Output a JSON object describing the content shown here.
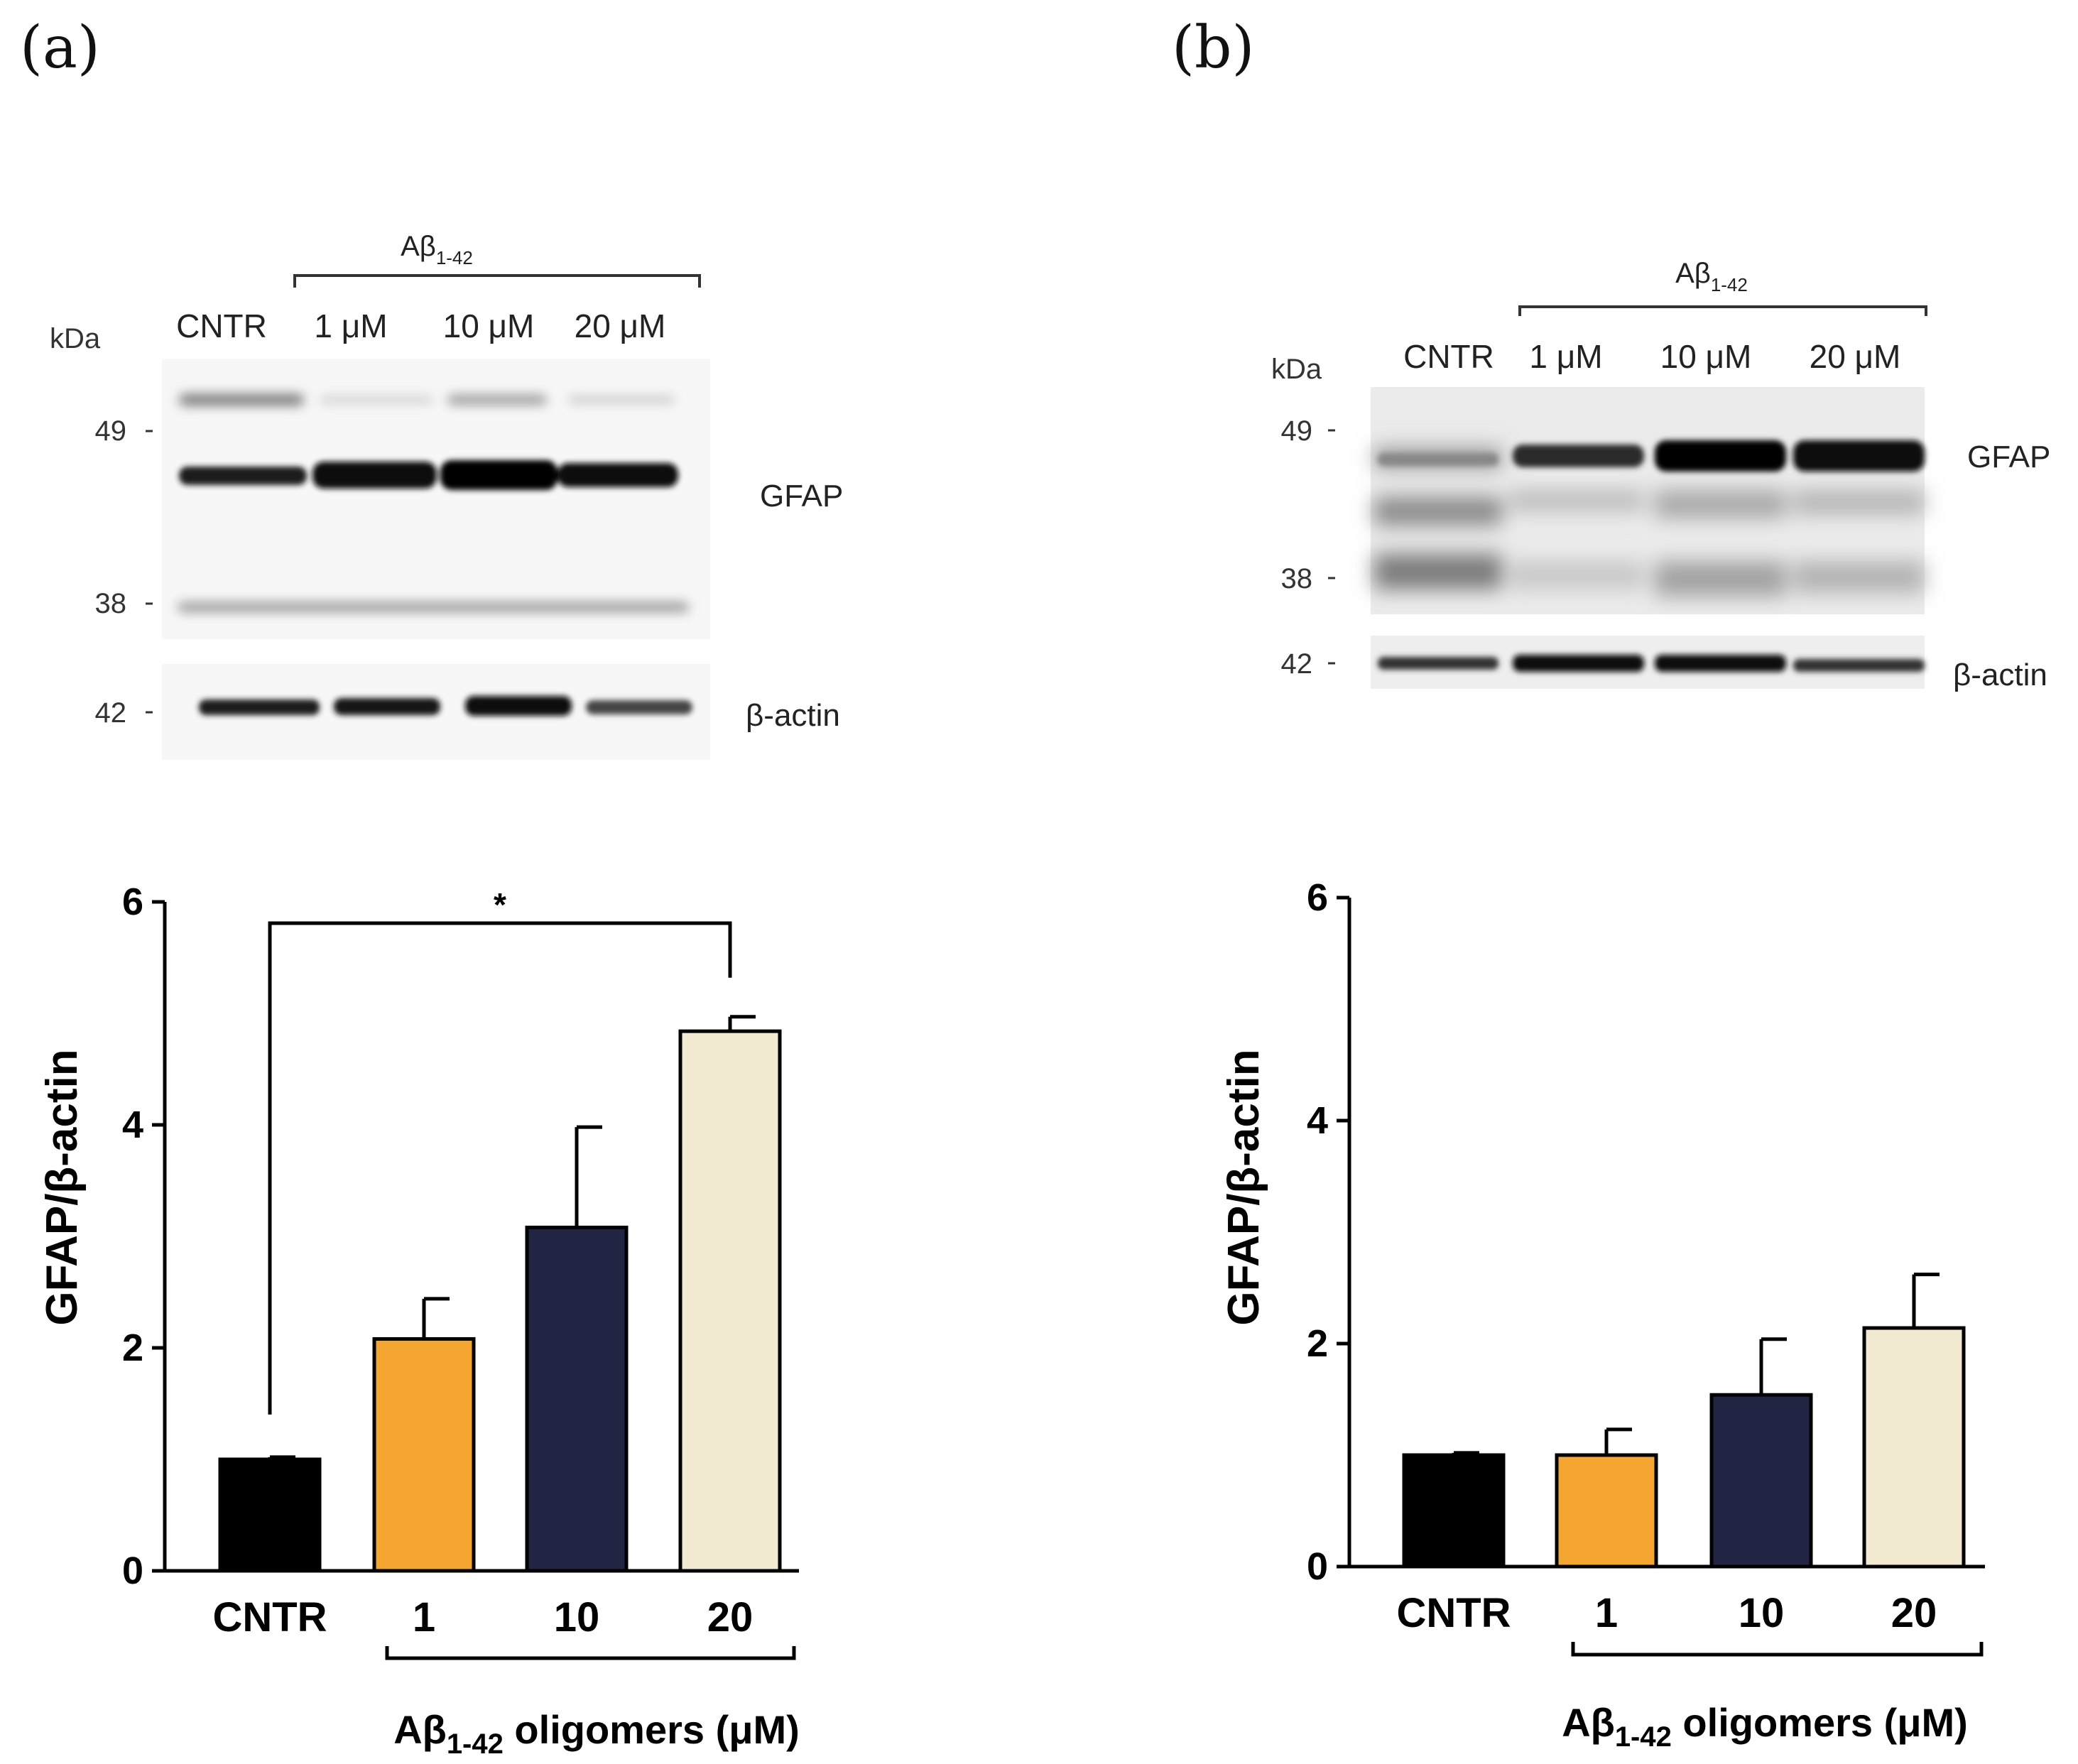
{
  "panels": [
    {
      "label": "(a)",
      "blot": {
        "group_label": "Aβ",
        "group_label_sub": "1-42",
        "kda_label": "kDa",
        "lanes": [
          "CNTR",
          "1 μM",
          "10 μM",
          "20 μM"
        ],
        "markers": [
          "49",
          "38",
          "42"
        ],
        "band_labels": [
          "GFAP",
          "β-actin"
        ]
      },
      "chart_data": {
        "type": "bar",
        "categories": [
          "CNTR",
          "1",
          "10",
          "20"
        ],
        "values": [
          1.0,
          2.08,
          3.08,
          4.84
        ],
        "errors": [
          0.02,
          0.36,
          0.9,
          0.13
        ],
        "colors": [
          "#000000",
          "#f5a631",
          "#222444",
          "#f1ead0"
        ],
        "ylabel": "GFAP/β-actin",
        "xlabel_prefix": "Aβ",
        "xlabel_sub": "1-42",
        "xlabel_suffix": " oligomers (μM)",
        "ylim": [
          0,
          6
        ],
        "yticks": [
          "0",
          "2",
          "4",
          "6"
        ],
        "significance": {
          "from": "CNTR",
          "to": "20",
          "label": "*"
        }
      }
    },
    {
      "label": "(b)",
      "blot": {
        "group_label": "Aβ",
        "group_label_sub": "1-42",
        "kda_label": "kDa",
        "lanes": [
          "CNTR",
          "1 μM",
          "10 μM",
          "20 μM"
        ],
        "markers": [
          "49",
          "38",
          "42"
        ],
        "band_labels": [
          "GFAP",
          "β-actin"
        ]
      },
      "chart_data": {
        "type": "bar",
        "categories": [
          "CNTR",
          "1",
          "10",
          "20"
        ],
        "values": [
          1.0,
          1.0,
          1.54,
          2.14
        ],
        "errors": [
          0.02,
          0.23,
          0.5,
          0.48
        ],
        "colors": [
          "#000000",
          "#f5a631",
          "#222444",
          "#f1ead0"
        ],
        "ylabel": "GFAP/β-actin",
        "xlabel_prefix": "Aβ",
        "xlabel_sub": "1-42",
        "xlabel_suffix": " oligomers (μM)",
        "ylim": [
          0,
          6
        ],
        "yticks": [
          "0",
          "2",
          "4",
          "6"
        ]
      }
    }
  ]
}
